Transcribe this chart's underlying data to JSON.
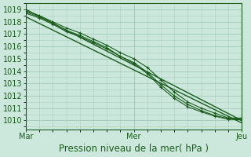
{
  "title": "Pression niveau de la mer( hPa )",
  "xlabel_ticks": [
    "Mar",
    "Mer",
    "Jeu"
  ],
  "ylabel_ticks": [
    1010,
    1011,
    1012,
    1013,
    1014,
    1015,
    1016,
    1017,
    1018,
    1019
  ],
  "ylim": [
    1009.3,
    1019.4
  ],
  "xlim": [
    0,
    48
  ],
  "background_color": "#cce8dc",
  "grid_color": "#a8cfc0",
  "line_color": "#1a5c1a",
  "marker_color": "#1a5c1a",
  "lines": [
    {
      "x": [
        0,
        48
      ],
      "y": [
        1019.0,
        1010.0
      ],
      "marker": null,
      "lw": 1.0
    },
    {
      "x": [
        0,
        48
      ],
      "y": [
        1018.4,
        1009.8
      ],
      "marker": null,
      "lw": 1.0
    },
    {
      "x": [
        0,
        3,
        6,
        9,
        12,
        15,
        18,
        21,
        24,
        27,
        30,
        33,
        36,
        39,
        42,
        45,
        48
      ],
      "y": [
        1018.9,
        1018.5,
        1018.0,
        1017.5,
        1017.1,
        1016.6,
        1016.1,
        1015.5,
        1015.0,
        1014.3,
        1013.3,
        1012.3,
        1011.5,
        1011.0,
        1010.6,
        1010.2,
        1010.2
      ],
      "marker": "+",
      "lw": 0.8,
      "ms": 2.5
    },
    {
      "x": [
        0,
        3,
        6,
        9,
        12,
        15,
        18,
        21,
        24,
        27,
        30,
        33,
        36,
        39,
        42,
        45,
        48
      ],
      "y": [
        1018.7,
        1018.3,
        1017.8,
        1017.2,
        1016.8,
        1016.3,
        1015.8,
        1015.2,
        1014.6,
        1013.8,
        1012.7,
        1011.8,
        1011.1,
        1010.7,
        1010.35,
        1010.1,
        1010.05
      ],
      "marker": "+",
      "lw": 0.8,
      "ms": 2.5
    },
    {
      "x": [
        0,
        3,
        6,
        9,
        12,
        15,
        18,
        21,
        24,
        27,
        30,
        33,
        36,
        39,
        42,
        45,
        48
      ],
      "y": [
        1018.8,
        1018.4,
        1017.9,
        1017.3,
        1016.9,
        1016.4,
        1015.9,
        1015.2,
        1014.7,
        1013.9,
        1012.9,
        1012.0,
        1011.3,
        1010.8,
        1010.4,
        1010.15,
        1010.1
      ],
      "marker": "+",
      "lw": 0.8,
      "ms": 2.5
    }
  ],
  "x_tick_positions": [
    0,
    24,
    48
  ],
  "title_fontsize": 8.5,
  "tick_fontsize": 7,
  "tick_color": "#1a5c1a",
  "spine_color": "#1a5c1a"
}
